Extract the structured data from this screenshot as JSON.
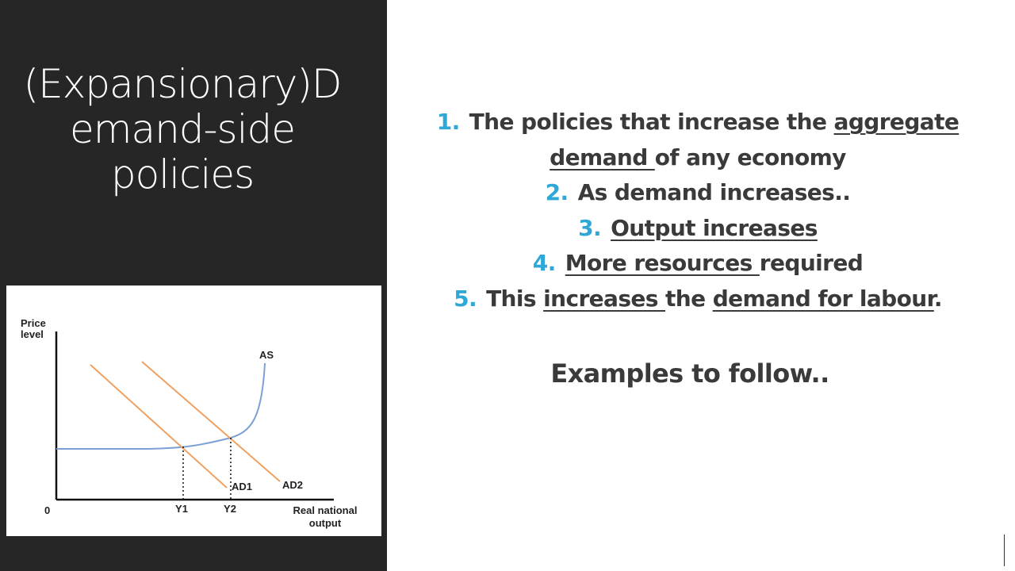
{
  "slide": {
    "title_lines": [
      "(Expansionary)D",
      "emand-side",
      "policies"
    ],
    "points": [
      {
        "number": "1.",
        "segments": [
          {
            "text": "The policies that increase the ",
            "underline": false
          },
          {
            "text": "aggregate demand ",
            "underline": true
          },
          {
            "text": "of any economy",
            "underline": false
          }
        ]
      },
      {
        "number": "2.",
        "segments": [
          {
            "text": "As demand increases..",
            "underline": false
          }
        ]
      },
      {
        "number": "3.",
        "segments": [
          {
            "text": "Output increases",
            "underline": true
          }
        ]
      },
      {
        "number": "4.",
        "segments": [
          {
            "text": "More resources ",
            "underline": true
          },
          {
            "text": "required",
            "underline": false
          }
        ]
      },
      {
        "number": "5.",
        "segments": [
          {
            "text": "This ",
            "underline": false
          },
          {
            "text": "increases ",
            "underline": true
          },
          {
            "text": "the ",
            "underline": false
          },
          {
            "text": "demand for labour",
            "underline": true
          },
          {
            "text": ".",
            "underline": false
          }
        ]
      }
    ],
    "examples_text": "Examples to follow..",
    "accent_color": "#2fa8d8",
    "panel_color": "#262626"
  },
  "diagram": {
    "y_axis_label": [
      "Price",
      "level"
    ],
    "x_axis_label": [
      "Real national",
      "output"
    ],
    "origin_label": "0",
    "curves": {
      "as_label": "AS",
      "ad1_label": "AD1",
      "ad2_label": "AD2"
    },
    "x_markers": [
      "Y1",
      "Y2"
    ],
    "as_color": "#7aa0d4",
    "ad_color": "#f0a060"
  }
}
